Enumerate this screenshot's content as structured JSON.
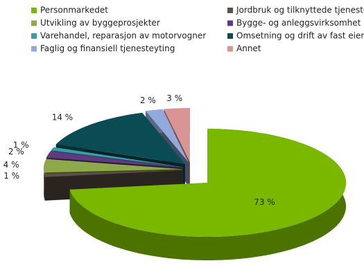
{
  "chart_data": {
    "type": "pie",
    "categories": [
      "Personmarkedet",
      "Jordbruk og tilknyttede tjenester",
      "Utvikling av byggeprosjekter",
      "Bygge- og anleggsvirksomhet",
      "Varehandel, reparasjon av motorvogner",
      "Omsetning og drift av fast eiendom",
      "Faglig og finansiell tjenesteyting",
      "Annet"
    ],
    "values": [
      73,
      1,
      4,
      2,
      1,
      14,
      2,
      3
    ],
    "value_labels": [
      "73 %",
      "1 %",
      "4 %",
      "2 %",
      "1 %",
      "14 %",
      "2 %",
      "3 %"
    ],
    "colors": [
      "#7ab800",
      "#5e4f47",
      "#8fa84a",
      "#5d3b7e",
      "#3b9cab",
      "#0b4c54",
      "#92aadb",
      "#d99593"
    ],
    "legend": "top"
  }
}
